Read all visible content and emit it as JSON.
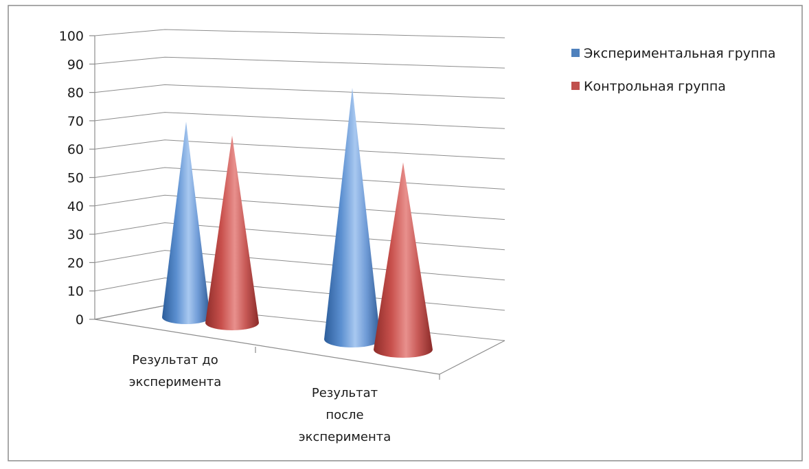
{
  "chart_data": {
    "type": "bar",
    "style": "3d-cone",
    "categories": [
      "Результат до эксперимента",
      "Результат после эксперимента"
    ],
    "category_lines": [
      [
        "Результат до",
        "эксперимента"
      ],
      [
        "Результат",
        "после",
        "эксперимента"
      ]
    ],
    "series": [
      {
        "name": "Экспериментальная группа",
        "values": [
          70,
          90
        ],
        "color": "#4f81bd"
      },
      {
        "name": "Контрольная группа",
        "values": [
          67,
          67
        ],
        "color": "#c0504d"
      }
    ],
    "ylim": [
      0,
      100
    ],
    "yticks": [
      0,
      10,
      20,
      30,
      40,
      50,
      60,
      70,
      80,
      90,
      100
    ],
    "grid": true,
    "legend_position": "right"
  }
}
